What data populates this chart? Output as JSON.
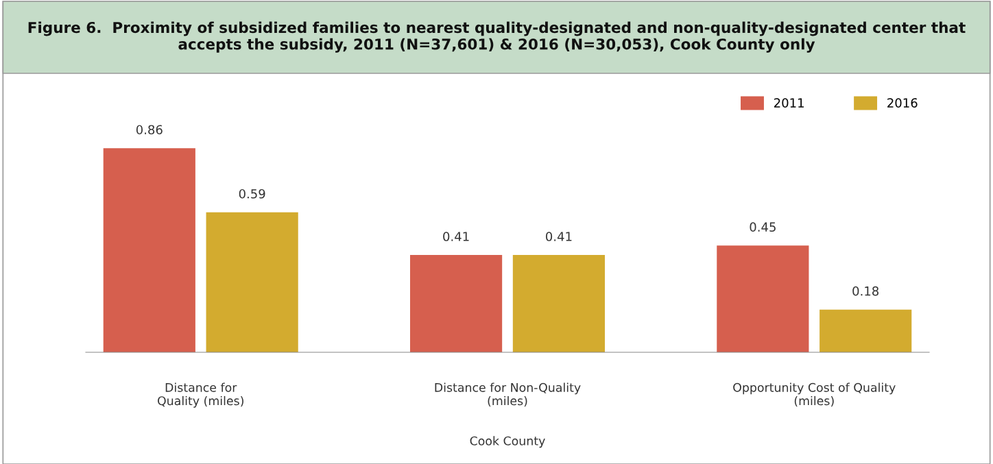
{
  "chart_data": {
    "type": "bar",
    "title": "Figure 6.  Proximity of subsidized families to nearest quality-designated and non-quality-designated center that accepts the subsidy, 2011 (N=37,601) & 2016 (N=30,053), Cook County only",
    "xlabel": "Cook County",
    "categories": [
      "Distance for\nQuality (miles)",
      "Distance for Non-Quality\n(miles)",
      "Opportunity Cost of Quality\n(miles)"
    ],
    "series": [
      {
        "name": "2011",
        "color": "#d65f4e",
        "values": [
          0.86,
          0.41,
          0.45
        ]
      },
      {
        "name": "2016",
        "color": "#d3ab2f",
        "values": [
          0.59,
          0.41,
          0.18
        ]
      }
    ],
    "data_labels": true,
    "legend": "top right",
    "grid": false
  }
}
